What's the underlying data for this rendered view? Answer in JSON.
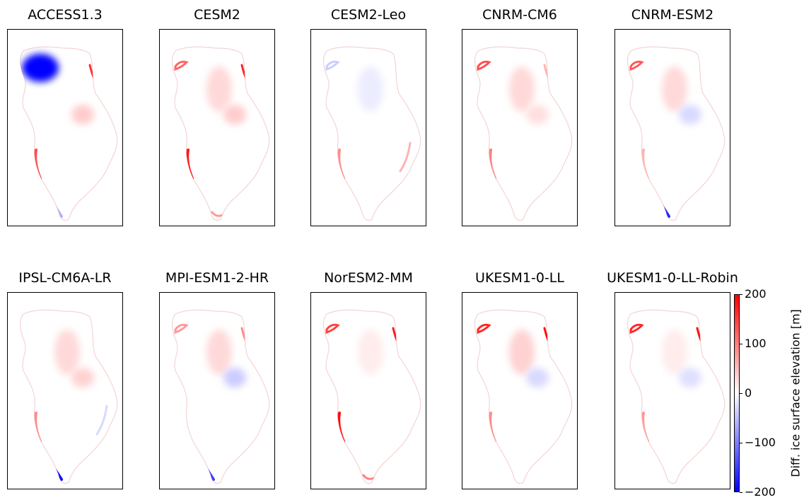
{
  "chart_data": {
    "type": "heatmap",
    "description_free": true,
    "panels": [
      {
        "name": "ACCESS1.3",
        "anomalies": [
          {
            "region": "northwest",
            "value": -200
          },
          {
            "region": "north-east-margin",
            "value": 160
          },
          {
            "region": "west-margin",
            "value": 140
          },
          {
            "region": "east-center",
            "value": 40
          },
          {
            "region": "southwest-margin",
            "value": -60
          }
        ]
      },
      {
        "name": "CESM2",
        "anomalies": [
          {
            "region": "west-margin",
            "value": 180
          },
          {
            "region": "north-east-margin",
            "value": 170
          },
          {
            "region": "northwest-margin",
            "value": 120
          },
          {
            "region": "interior-north",
            "value": 30
          },
          {
            "region": "east-center",
            "value": 40
          },
          {
            "region": "south-margin",
            "value": 80
          }
        ]
      },
      {
        "name": "CESM2-Leo",
        "anomalies": [
          {
            "region": "interior-north",
            "value": -15
          },
          {
            "region": "northwest-margin",
            "value": -40
          },
          {
            "region": "west-margin",
            "value": 90
          },
          {
            "region": "east-margin",
            "value": 60
          }
        ]
      },
      {
        "name": "CNRM-CM6",
        "anomalies": [
          {
            "region": "northwest-margin",
            "value": 140
          },
          {
            "region": "interior-north",
            "value": 30
          },
          {
            "region": "east-center",
            "value": 25
          },
          {
            "region": "west-margin",
            "value": 100
          },
          {
            "region": "north-east-margin",
            "value": 60
          }
        ]
      },
      {
        "name": "CNRM-ESM2",
        "anomalies": [
          {
            "region": "northwest-margin",
            "value": 130
          },
          {
            "region": "interior-north",
            "value": 30
          },
          {
            "region": "southwest-margin",
            "value": -170
          },
          {
            "region": "east-center",
            "value": -30
          },
          {
            "region": "west-margin",
            "value": 60
          }
        ]
      },
      {
        "name": "IPSL-CM6A-LR",
        "anomalies": [
          {
            "region": "interior-north",
            "value": 30
          },
          {
            "region": "east-center",
            "value": 35
          },
          {
            "region": "west-margin",
            "value": 90
          },
          {
            "region": "southwest-margin",
            "value": -190
          },
          {
            "region": "east-margin",
            "value": -30
          }
        ]
      },
      {
        "name": "MPI-ESM1-2-HR",
        "anomalies": [
          {
            "region": "interior-north",
            "value": 30
          },
          {
            "region": "east-center",
            "value": -40
          },
          {
            "region": "southwest-margin",
            "value": -150
          },
          {
            "region": "northwest-margin",
            "value": 80
          },
          {
            "region": "north-east-margin",
            "value": 90
          }
        ]
      },
      {
        "name": "NorESM2-MM",
        "anomalies": [
          {
            "region": "west-margin",
            "value": 190
          },
          {
            "region": "north-east-margin",
            "value": 180
          },
          {
            "region": "northwest-margin",
            "value": 150
          },
          {
            "region": "south-margin",
            "value": 100
          },
          {
            "region": "interior-north",
            "value": 15
          }
        ]
      },
      {
        "name": "UKESM1-0-LL",
        "anomalies": [
          {
            "region": "northwest-margin",
            "value": 170
          },
          {
            "region": "north-east-margin",
            "value": 190
          },
          {
            "region": "interior-north",
            "value": 35
          },
          {
            "region": "west-margin",
            "value": 90
          },
          {
            "region": "east-center",
            "value": -30
          }
        ]
      },
      {
        "name": "UKESM1-0-LL-Robin",
        "anomalies": [
          {
            "region": "northwest-margin",
            "value": 170
          },
          {
            "region": "north-east-margin",
            "value": 190
          },
          {
            "region": "interior-north",
            "value": 15
          },
          {
            "region": "west-margin",
            "value": 80
          },
          {
            "region": "east-center",
            "value": -25
          }
        ]
      }
    ],
    "colorbar": {
      "label": "Diff. ice surface elevation [m]",
      "range": [
        -200,
        200
      ],
      "ticks": [
        200,
        100,
        0,
        -100,
        -200
      ],
      "tick_labels": [
        "200",
        "100",
        "0",
        "−100",
        "−200"
      ],
      "colormap": "bwr",
      "color_min": "#0000ff",
      "color_mid": "#ffffff",
      "color_max": "#ff0000",
      "placement": "right"
    },
    "grid": false,
    "layout": {
      "rows": 2,
      "cols": 5
    }
  }
}
